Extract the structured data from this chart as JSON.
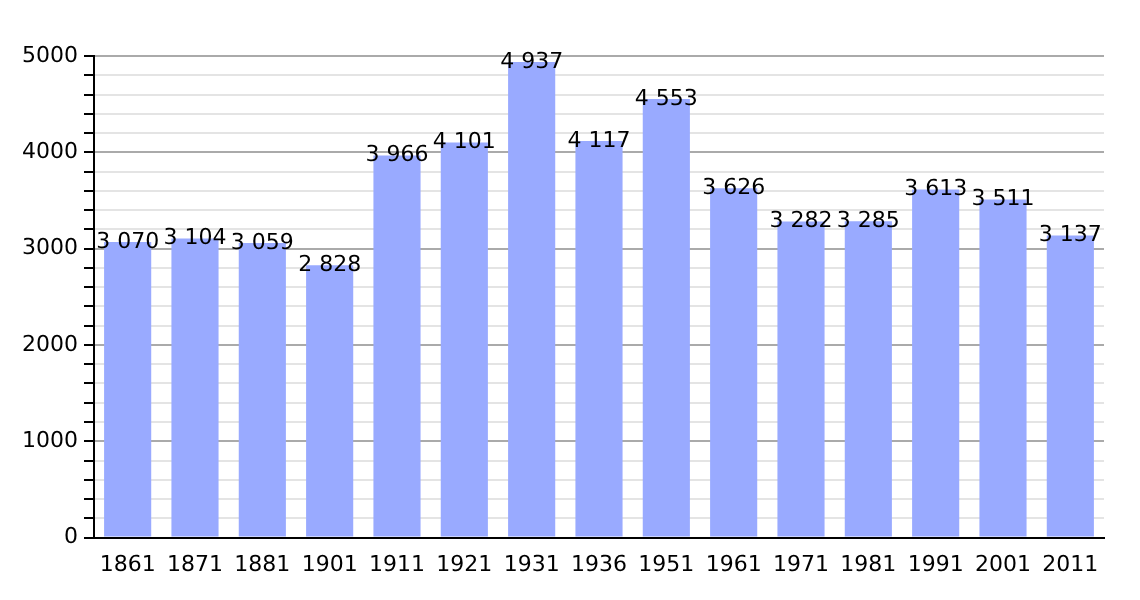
{
  "chart_data": {
    "type": "bar",
    "categories": [
      "1861",
      "1871",
      "1881",
      "1901",
      "1911",
      "1921",
      "1931",
      "1936",
      "1951",
      "1961",
      "1971",
      "1981",
      "1991",
      "2001",
      "2011"
    ],
    "values": [
      3070,
      3104,
      3059,
      2828,
      3966,
      4101,
      4937,
      4117,
      4553,
      3626,
      3282,
      3285,
      3613,
      3511,
      3137
    ],
    "value_labels": [
      "3 070",
      "3 104",
      "3 059",
      "2 828",
      "3 966",
      "4 101",
      "4 937",
      "4 117",
      "4 553",
      "3 626",
      "3 282",
      "3 285",
      "3 613",
      "3 511",
      "3 137"
    ],
    "color": "#99aaff",
    "ylim": [
      0,
      5000
    ],
    "yticks": [
      0,
      {
        "value": 200,
        "label": null
      },
      {
        "value": 400,
        "label": null
      },
      {
        "value": 600,
        "label": null
      },
      {
        "value": 800,
        "label": null
      },
      1000,
      {
        "value": 1200,
        "label": null
      },
      {
        "value": 1400,
        "label": null
      },
      {
        "value": 1600,
        "label": null
      },
      {
        "value": 1800,
        "label": null
      },
      2000,
      {
        "value": 2200,
        "label": null
      },
      {
        "value": 2400,
        "label": null
      },
      {
        "value": 2600,
        "label": null
      },
      {
        "value": 2800,
        "label": null
      },
      3000,
      {
        "value": 3200,
        "label": null
      },
      {
        "value": 3400,
        "label": null
      },
      {
        "value": 3600,
        "label": null
      },
      {
        "value": 3800,
        "label": null
      },
      4000,
      {
        "value": 4200,
        "label": null
      },
      {
        "value": 4400,
        "label": null
      },
      {
        "value": 4600,
        "label": null
      },
      {
        "value": 4800,
        "label": null
      },
      5000
    ],
    "grid": "y",
    "legend": false
  }
}
